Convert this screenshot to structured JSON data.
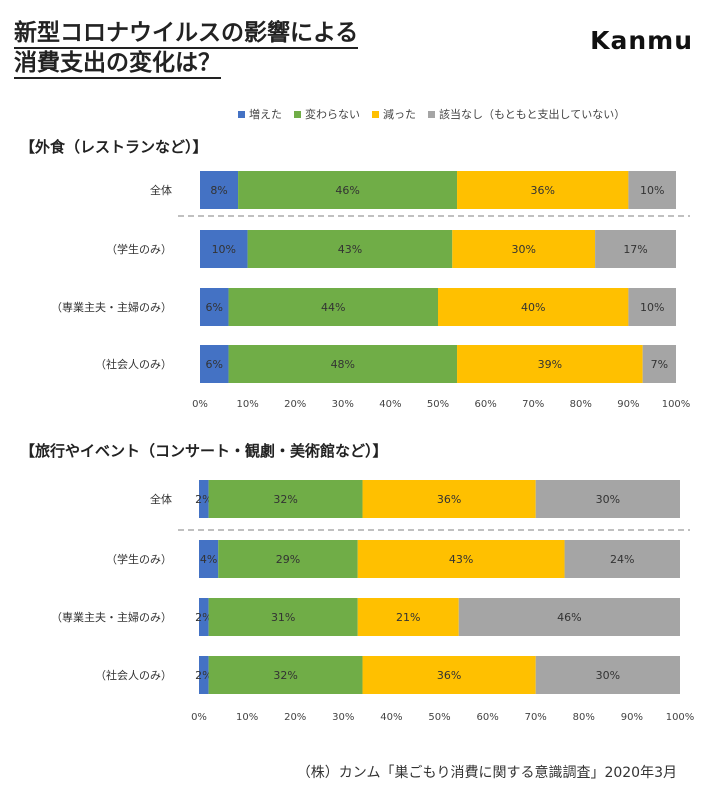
{
  "header": {
    "title_line1": "新型コロナウイルスの影響による",
    "title_line2": "消費支出の変化は？",
    "brand": "Kanmu"
  },
  "legend": [
    {
      "label": "増えた",
      "color": "#4472C4"
    },
    {
      "label": "変わらない",
      "color": "#70AD47"
    },
    {
      "label": "減った",
      "color": "#FFC000"
    },
    {
      "label": "該当なし（もともと支出していない）",
      "color": "#A5A5A5"
    }
  ],
  "footer": {
    "source": "（株）カンム「巣ごもり消費に関する意識調査」2020年3月"
  },
  "chart_data": [
    {
      "type": "bar",
      "orientation": "horizontal",
      "stacked": true,
      "title": "【外食（レストランなど）】",
      "categories": [
        "全体",
        "（学生のみ）",
        "（専業主夫・主婦のみ）",
        "（社会人のみ）"
      ],
      "series": [
        {
          "name": "増えた",
          "values": [
            8,
            10,
            6,
            6
          ],
          "labels": [
            "8%",
            "10%",
            "6%",
            "6%"
          ]
        },
        {
          "name": "変わらない",
          "values": [
            46,
            43,
            44,
            48
          ],
          "labels": [
            "46%",
            "43%",
            "44%",
            "48%"
          ]
        },
        {
          "name": "減った",
          "values": [
            36,
            30,
            40,
            39
          ],
          "labels": [
            "36%",
            "30%",
            "40%",
            "39%"
          ]
        },
        {
          "name": "該当なし（もともと支出していない）",
          "values": [
            10,
            17,
            10,
            7
          ],
          "labels": [
            "10%",
            "17%",
            "10%",
            "7%"
          ]
        }
      ],
      "x_ticks": [
        "0%",
        "10%",
        "20%",
        "30%",
        "40%",
        "50%",
        "60%",
        "70%",
        "80%",
        "90%",
        "100%"
      ],
      "xlim": [
        0,
        100
      ]
    },
    {
      "type": "bar",
      "orientation": "horizontal",
      "stacked": true,
      "title": "【旅行やイベント（コンサート・観劇・美術館など）】",
      "categories": [
        "全体",
        "（学生のみ）",
        "（専業主夫・主婦のみ）",
        "（社会人のみ）"
      ],
      "series": [
        {
          "name": "増えた",
          "values": [
            2,
            4,
            2,
            2
          ],
          "labels": [
            "2%",
            "4%",
            "2%",
            "2%"
          ]
        },
        {
          "name": "変わらない",
          "values": [
            32,
            29,
            31,
            32
          ],
          "labels": [
            "32%",
            "29%",
            "31%",
            "32%"
          ]
        },
        {
          "name": "減った",
          "values": [
            36,
            43,
            21,
            36
          ],
          "labels": [
            "36%",
            "43%",
            "21%",
            "36%"
          ]
        },
        {
          "name": "該当なし（もともと支出していない）",
          "values": [
            30,
            24,
            46,
            30
          ],
          "labels": [
            "30%",
            "24%",
            "46%",
            "30%"
          ]
        }
      ],
      "x_ticks": [
        "0%",
        "10%",
        "20%",
        "30%",
        "40%",
        "50%",
        "60%",
        "70%",
        "80%",
        "90%",
        "100%"
      ],
      "xlim": [
        0,
        100
      ]
    }
  ]
}
